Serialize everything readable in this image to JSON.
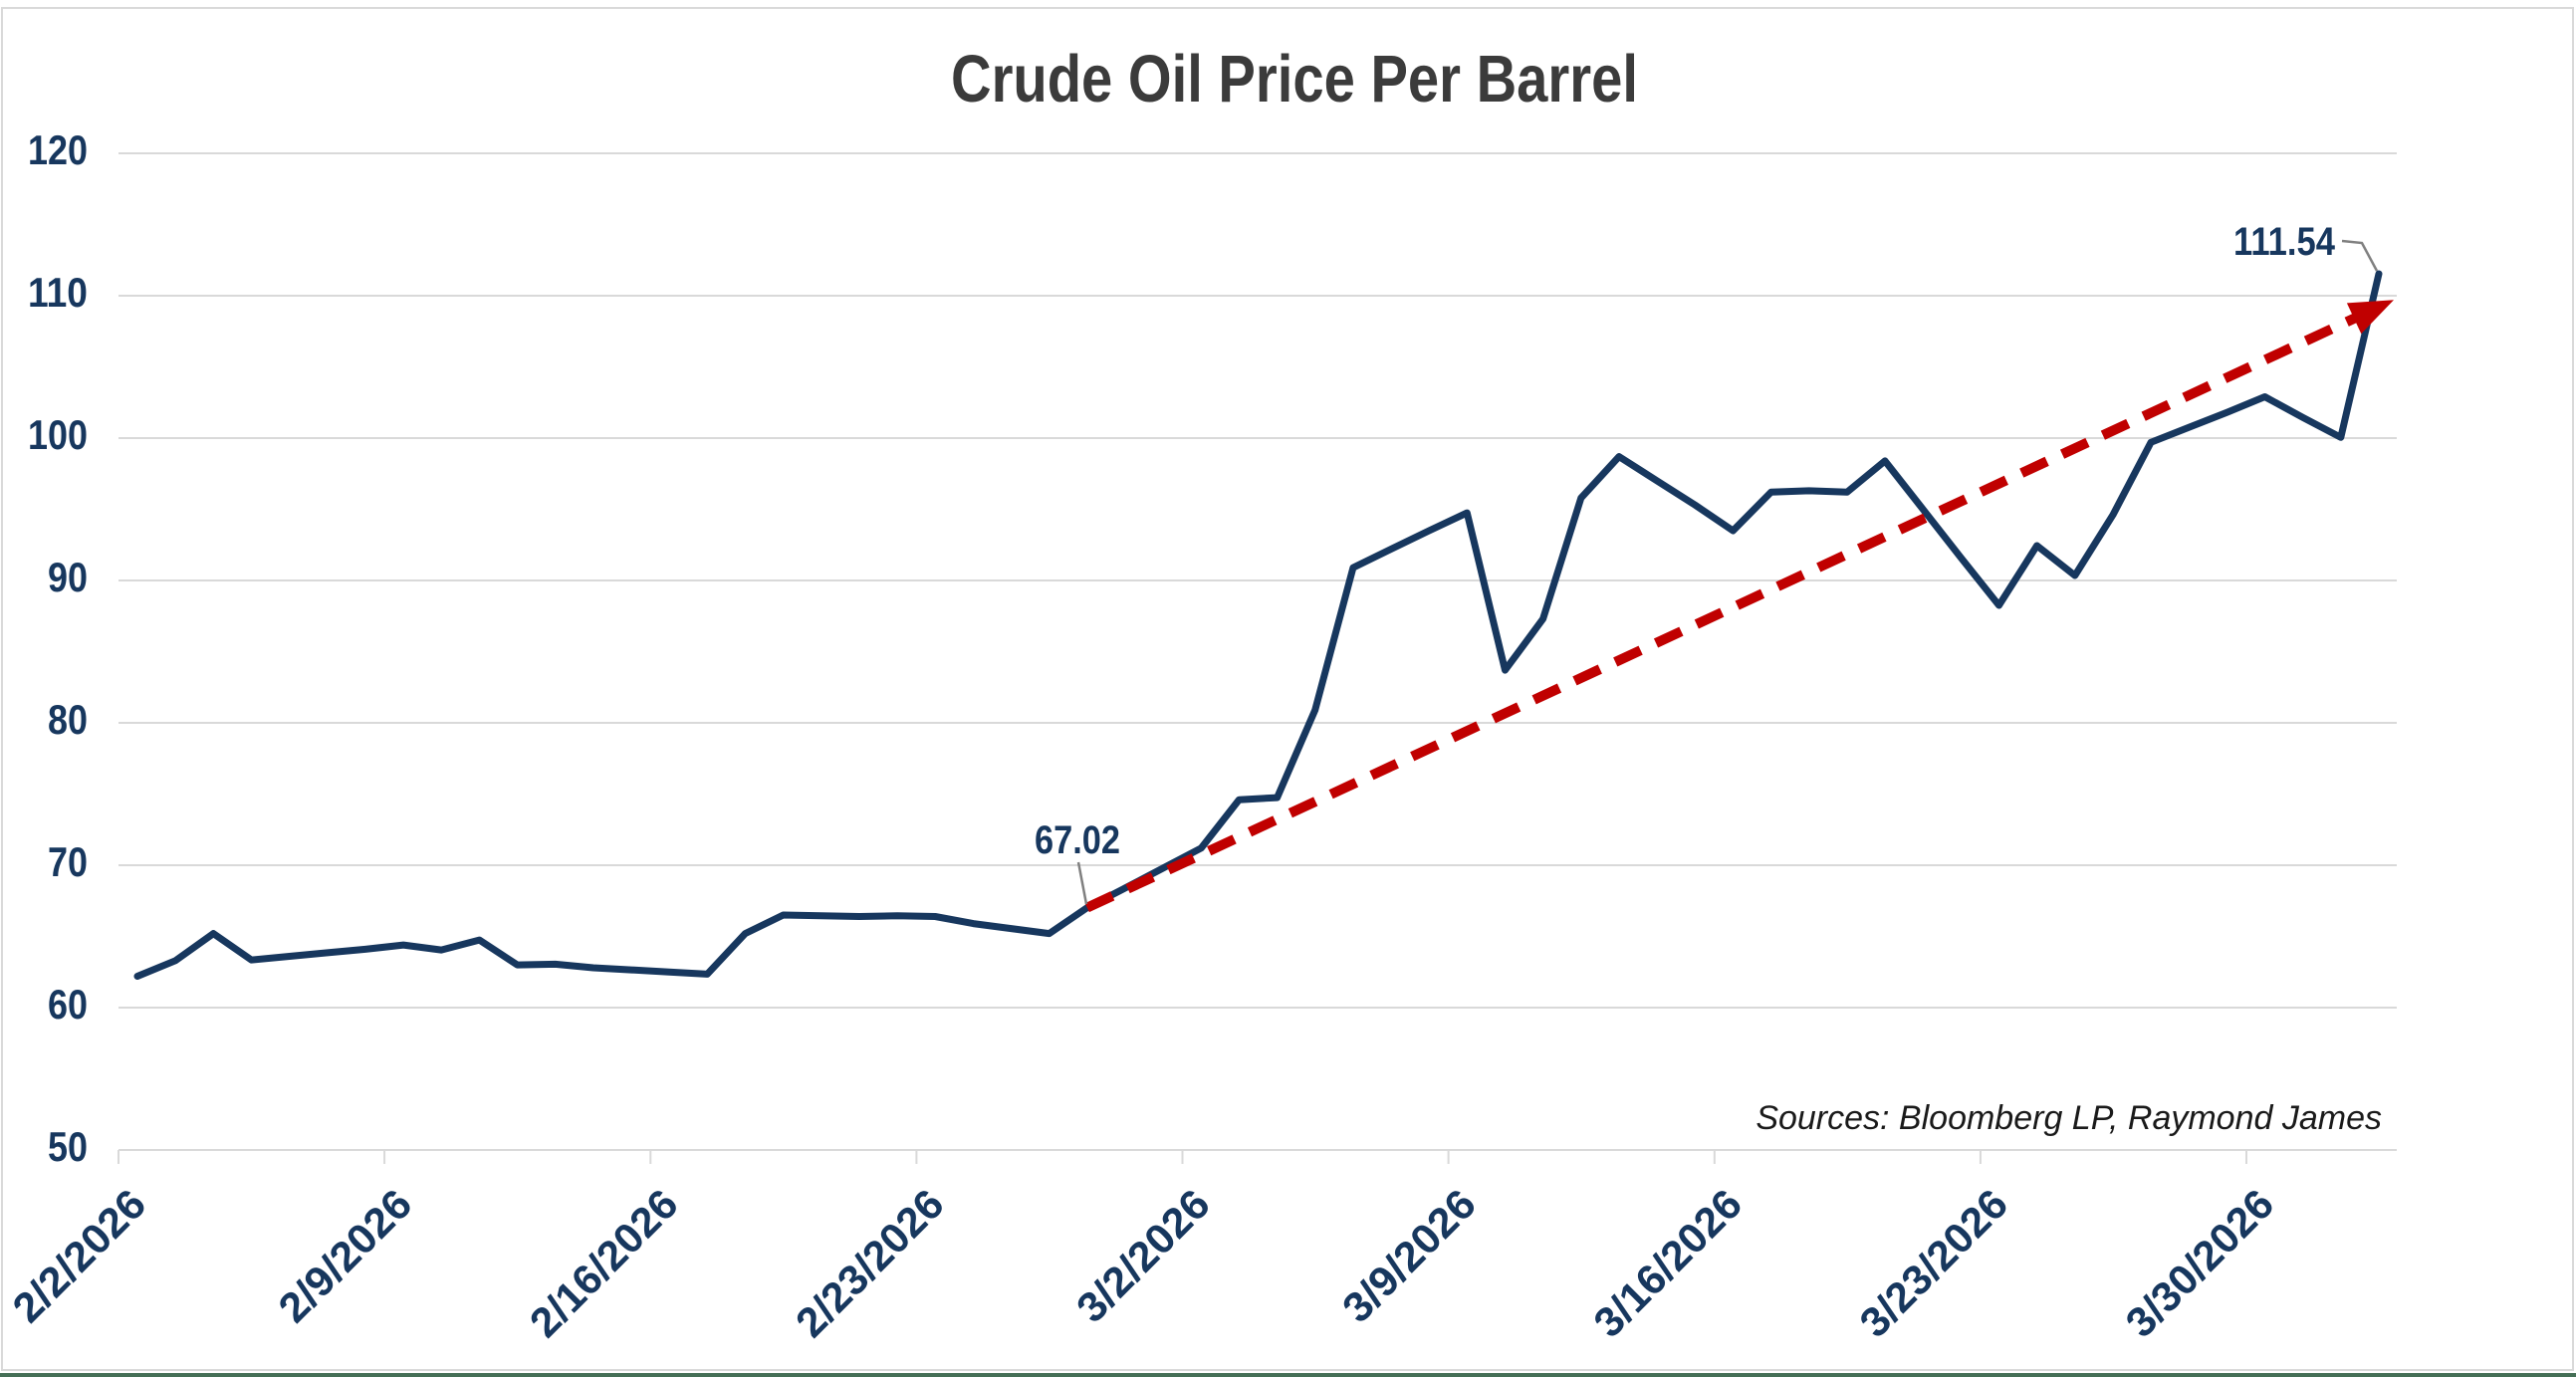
{
  "title": "Crude Oil Price Per Barrel",
  "source_note": "Sources: Bloomberg LP, Raymond James",
  "annotations": {
    "start": {
      "label": "67.02",
      "date": "2/27/2026",
      "value": 67.02
    },
    "end": {
      "label": "111.54",
      "date": "4/2/2026",
      "value": 111.54
    }
  },
  "colors": {
    "line": "#17375E",
    "trend": "#C00000",
    "grid": "#D9D9D9",
    "axis_labels": "#17375E",
    "title": "#3B3B3B",
    "annotation": "#17375E",
    "callout": "#808080",
    "source": "#1A1A1A",
    "border": "#D9D9D9",
    "bottom_bar": "#456F56",
    "background": "#FFFFFF"
  },
  "chart_data": {
    "type": "line",
    "title": "Crude Oil Price Per Barrel",
    "xlabel": "",
    "ylabel": "",
    "ylim": [
      50,
      120
    ],
    "y_ticks": [
      50,
      60,
      70,
      80,
      90,
      100,
      110,
      120
    ],
    "grid": "horizontal",
    "legend": "none",
    "x_tick_labels": [
      "2/2/2026",
      "2/9/2026",
      "2/16/2026",
      "2/23/2026",
      "3/2/2026",
      "3/9/2026",
      "3/16/2026",
      "3/23/2026",
      "3/30/2026"
    ],
    "x": [
      "2/2/2026",
      "2/3/2026",
      "2/4/2026",
      "2/5/2026",
      "2/6/2026",
      "2/7/2026",
      "2/8/2026",
      "2/9/2026",
      "2/10/2026",
      "2/11/2026",
      "2/12/2026",
      "2/13/2026",
      "2/14/2026",
      "2/15/2026",
      "2/16/2026",
      "2/17/2026",
      "2/18/2026",
      "2/19/2026",
      "2/20/2026",
      "2/21/2026",
      "2/22/2026",
      "2/23/2026",
      "2/24/2026",
      "2/25/2026",
      "2/26/2026",
      "2/27/2026",
      "2/28/2026",
      "3/1/2026",
      "3/2/2026",
      "3/3/2026",
      "3/4/2026",
      "3/5/2026",
      "3/6/2026",
      "3/7/2026",
      "3/8/2026",
      "3/9/2026",
      "3/10/2026",
      "3/11/2026",
      "3/12/2026",
      "3/13/2026",
      "3/14/2026",
      "3/15/2026",
      "3/16/2026",
      "3/17/2026",
      "3/18/2026",
      "3/19/2026",
      "3/20/2026",
      "3/21/2026",
      "3/22/2026",
      "3/23/2026",
      "3/24/2026",
      "3/25/2026",
      "3/26/2026",
      "3/27/2026",
      "3/28/2026",
      "3/29/2026",
      "3/30/2026",
      "3/31/2026",
      "4/1/2026",
      "4/2/2026"
    ],
    "series": [
      {
        "name": "Crude Oil Price Per Barrel",
        "color": "#17375E",
        "values": [
          62.2,
          63.3,
          65.2,
          63.35,
          63.6,
          63.85,
          64.1,
          64.4,
          64.05,
          64.75,
          63.0,
          63.05,
          62.8,
          62.65,
          62.5,
          62.35,
          65.2,
          66.5,
          66.45,
          66.4,
          66.45,
          66.4,
          65.9,
          65.55,
          65.2,
          67.02,
          68.4,
          69.8,
          71.2,
          74.6,
          74.75,
          80.9,
          90.9,
          92.2,
          93.5,
          94.75,
          83.7,
          87.3,
          95.8,
          98.7,
          97.0,
          95.3,
          93.5,
          96.2,
          96.3,
          96.2,
          98.4,
          95.0,
          91.6,
          88.25,
          92.45,
          90.35,
          94.6,
          99.7,
          100.75,
          101.8,
          102.9,
          101.45,
          100.05,
          111.54
        ]
      }
    ],
    "trendline": {
      "style": "dashed-arrow",
      "color": "#C00000",
      "start_date": "2/27/2026",
      "start_value": 67.02,
      "end_date": "4/2/2026",
      "end_value": 109.7
    }
  }
}
